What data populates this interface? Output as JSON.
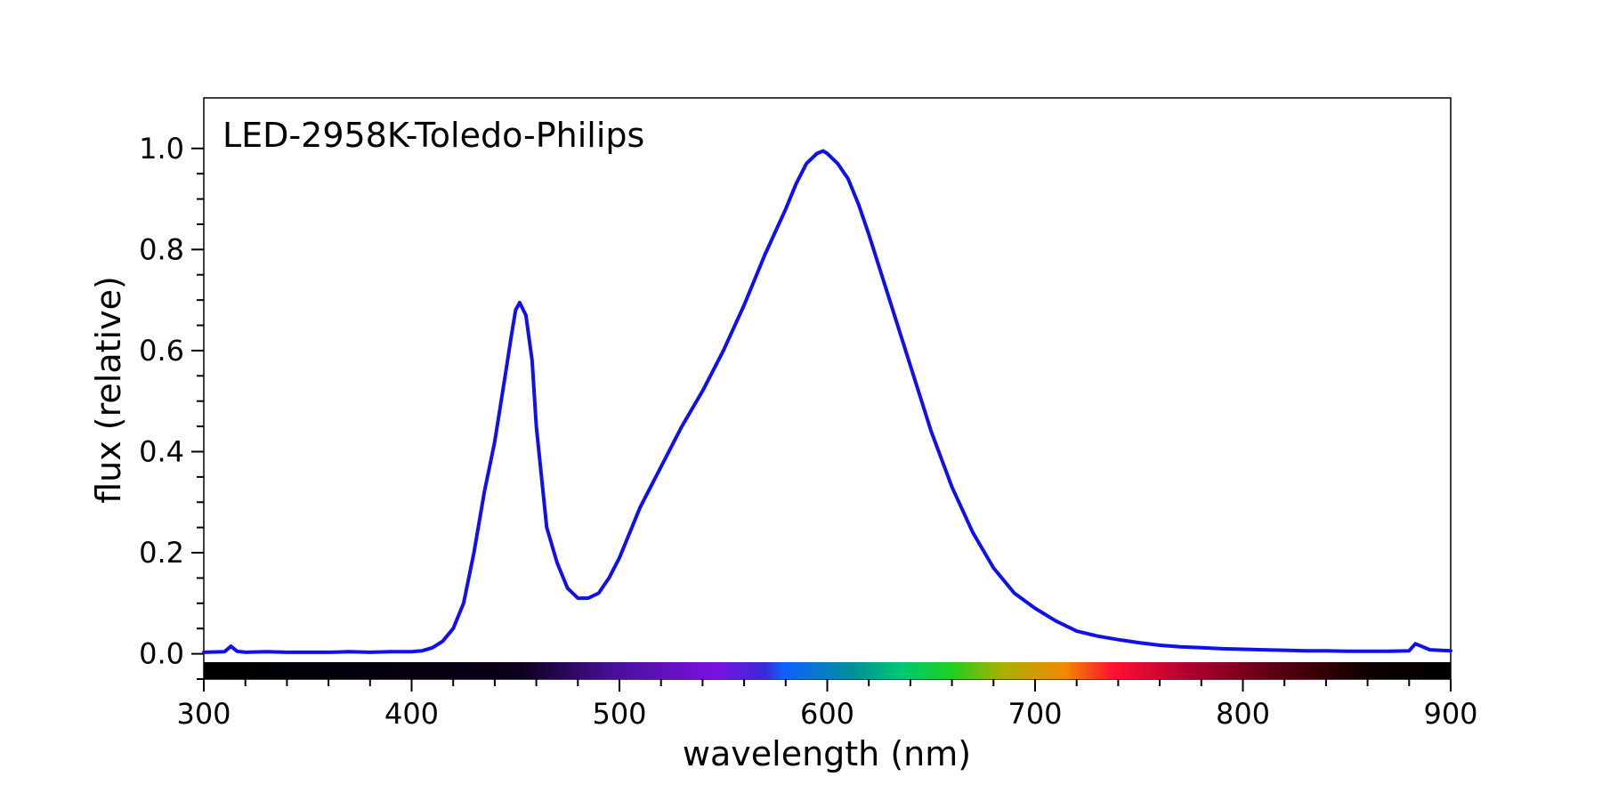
{
  "chart_data": {
    "type": "line",
    "title": "LED-2958K-Toledo-Philips",
    "xlabel": "wavelength (nm)",
    "ylabel": "flux (relative)",
    "xlim": [
      300,
      900
    ],
    "ylim": [
      -0.05,
      1.1
    ],
    "x_ticks": [
      300,
      400,
      500,
      600,
      700,
      800,
      900
    ],
    "y_ticks": [
      0.0,
      0.2,
      0.4,
      0.6,
      0.8,
      1.0
    ],
    "x_tick_labels": [
      "300",
      "400",
      "500",
      "600",
      "700",
      "800",
      "900"
    ],
    "y_tick_labels": [
      "0.0",
      "0.2",
      "0.4",
      "0.6",
      "0.8",
      "1.0"
    ],
    "legend": "none",
    "grid": false,
    "line_color": "#1010ee",
    "spectrum_band": true,
    "series": [
      {
        "x": [
          300,
          310,
          313,
          316,
          320,
          330,
          340,
          350,
          360,
          370,
          380,
          390,
          400,
          405,
          410,
          415,
          420,
          425,
          430,
          435,
          440,
          445,
          448,
          450,
          452,
          455,
          458,
          460,
          463,
          465,
          470,
          475,
          480,
          485,
          490,
          495,
          500,
          505,
          510,
          515,
          520,
          525,
          530,
          540,
          550,
          560,
          570,
          580,
          585,
          590,
          595,
          598,
          600,
          605,
          610,
          615,
          620,
          630,
          640,
          650,
          660,
          670,
          680,
          690,
          700,
          710,
          720,
          730,
          740,
          750,
          760,
          770,
          780,
          790,
          800,
          810,
          820,
          830,
          840,
          850,
          860,
          870,
          880,
          883,
          890,
          900
        ],
        "y": [
          0.003,
          0.004,
          0.015,
          0.005,
          0.003,
          0.004,
          0.003,
          0.003,
          0.003,
          0.004,
          0.003,
          0.004,
          0.004,
          0.006,
          0.012,
          0.025,
          0.05,
          0.1,
          0.2,
          0.32,
          0.42,
          0.55,
          0.63,
          0.68,
          0.695,
          0.67,
          0.58,
          0.45,
          0.33,
          0.25,
          0.18,
          0.13,
          0.11,
          0.11,
          0.12,
          0.15,
          0.19,
          0.24,
          0.29,
          0.33,
          0.37,
          0.41,
          0.45,
          0.52,
          0.6,
          0.69,
          0.79,
          0.88,
          0.93,
          0.97,
          0.99,
          0.995,
          0.99,
          0.97,
          0.94,
          0.89,
          0.83,
          0.7,
          0.57,
          0.44,
          0.33,
          0.24,
          0.17,
          0.12,
          0.09,
          0.065,
          0.045,
          0.035,
          0.028,
          0.022,
          0.017,
          0.014,
          0.012,
          0.01,
          0.009,
          0.008,
          0.007,
          0.006,
          0.006,
          0.005,
          0.005,
          0.005,
          0.006,
          0.02,
          0.008,
          0.006
        ]
      }
    ]
  }
}
